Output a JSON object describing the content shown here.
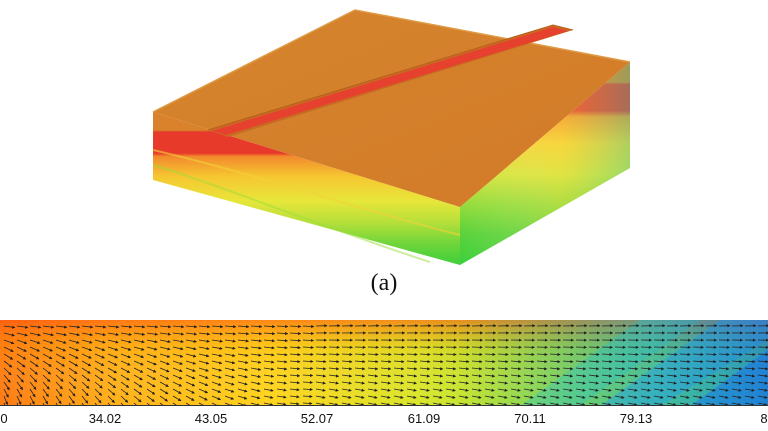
{
  "caption": "(a)",
  "scale_ticks": [
    "0",
    "34.02",
    "43.05",
    "52.07",
    "61.09",
    "70.11",
    "79.13",
    "8"
  ],
  "colors": {
    "top_face": "#d9822b",
    "hot_layer": "#e83a2a",
    "slot": "#e6402e"
  }
}
